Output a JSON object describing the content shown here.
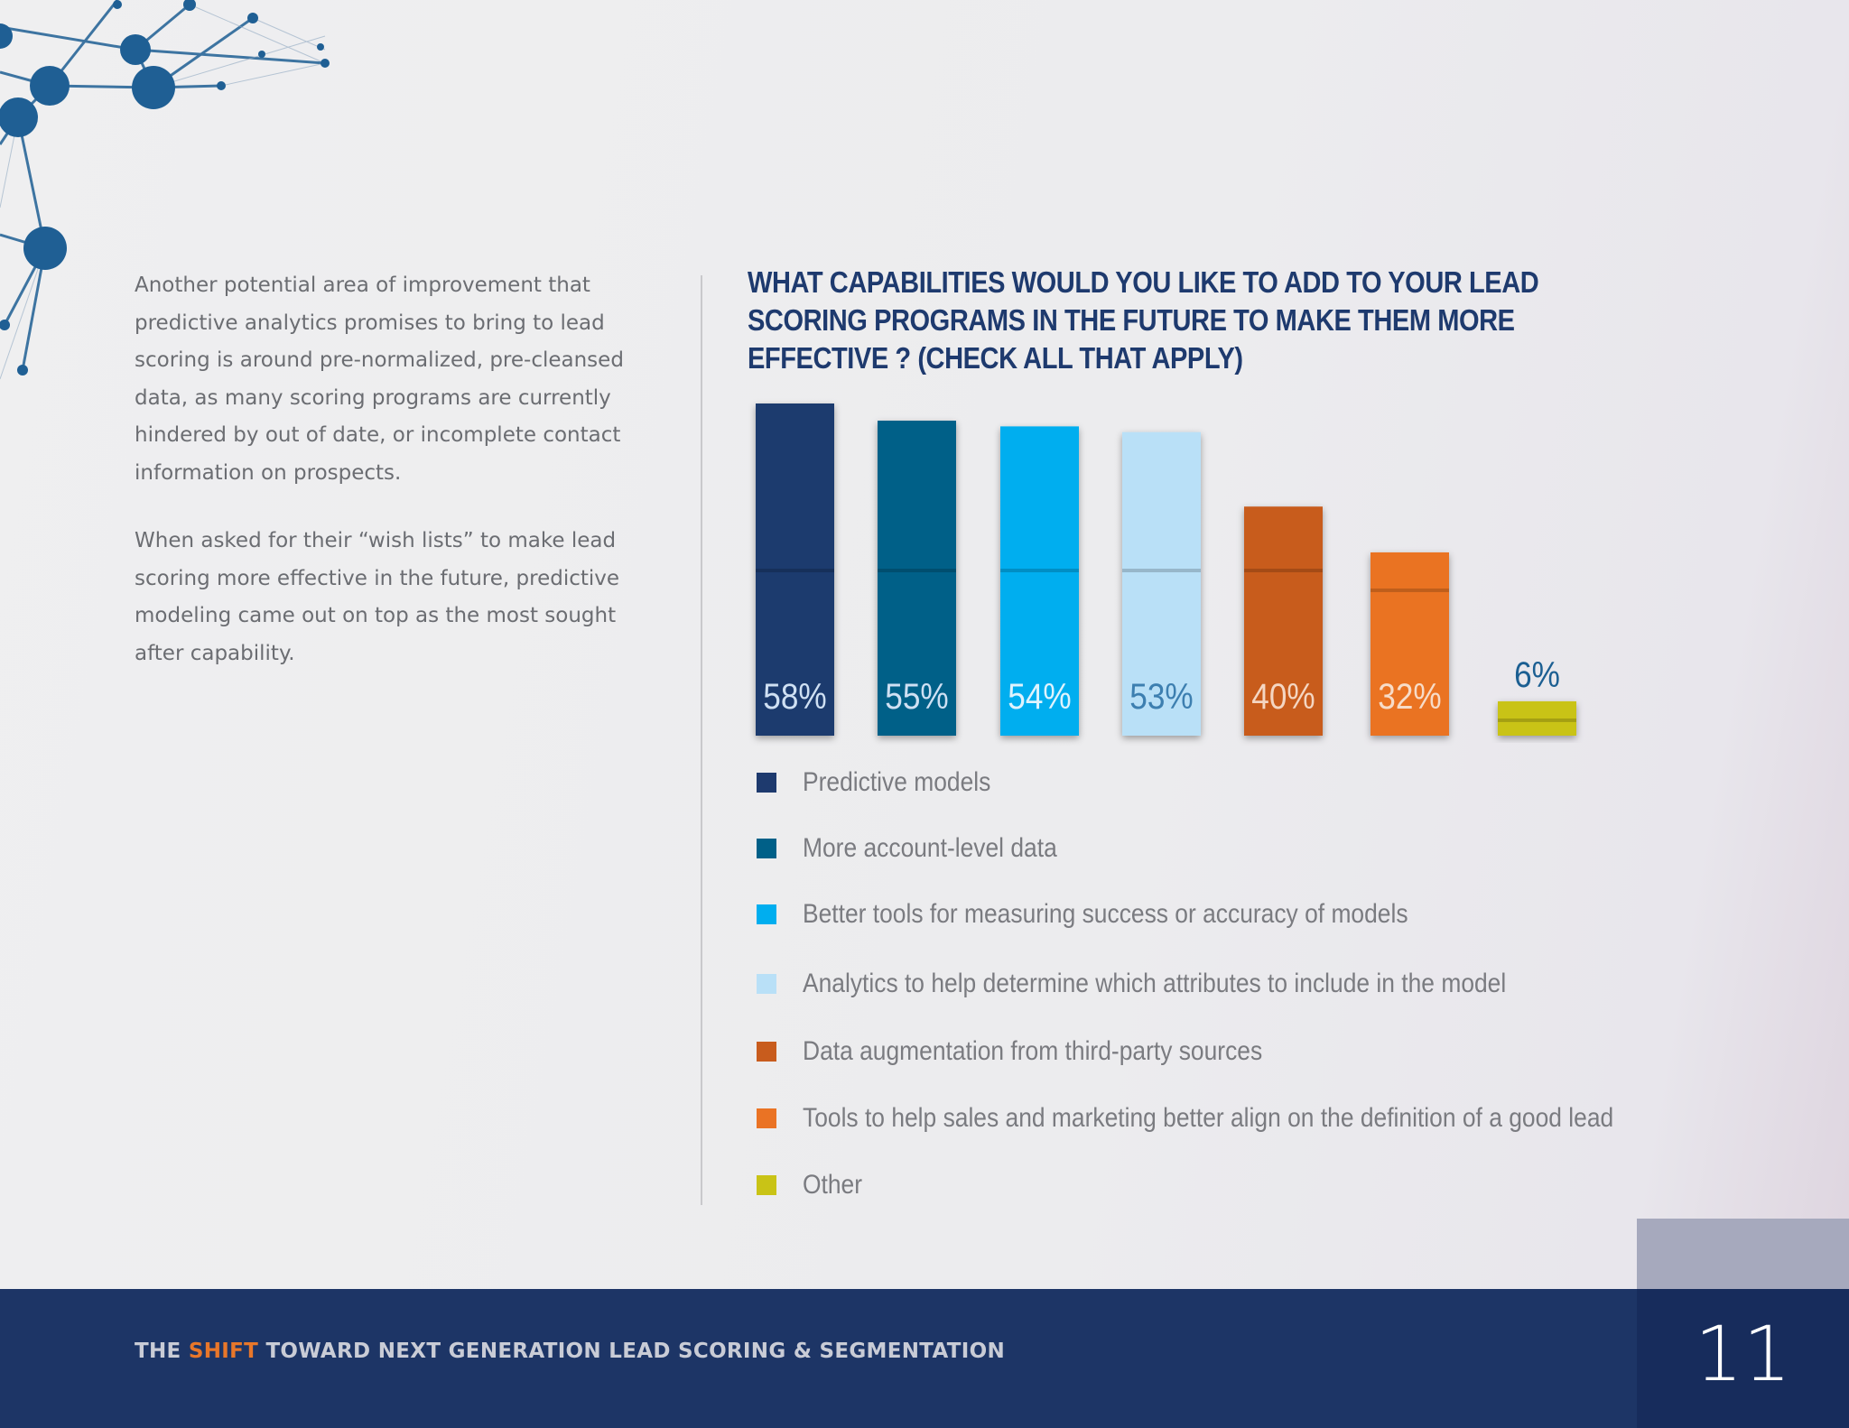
{
  "body_text": {
    "paragraph_1": "Another potential area of improvement that predictive analytics promises to bring to lead scoring is around pre-normalized, pre-cleansed data, as many scoring programs are currently hindered by out of date, or incomplete contact information on prospects.",
    "paragraph_2": "When asked for their “wish lists” to make lead scoring more effective in the future, predictive modeling came out on top as the most sought after capability."
  },
  "footer": {
    "title_prefix": "THE ",
    "title_accent": "SHIFT",
    "title_suffix": " TOWARD NEXT GENERATION LEAD SCORING & SEGMENTATION",
    "page_number": "11"
  },
  "colors": {
    "accent": "#e8772a",
    "navy": "#1d3566"
  },
  "chart_data": {
    "type": "bar",
    "title": "WHAT CAPABILITIES WOULD YOU LIKE TO ADD TO YOUR LEAD SCORING PROGRAMS IN THE FUTURE TO MAKE THEM MORE EFFECTIVE ? (CHECK ALL THAT APPLY)",
    "categories": [
      "Predictive models",
      "More account-level data",
      "Better tools for measuring success or accuracy of models",
      "Analytics to help determine which attributes to include in the model",
      "Data augmentation from third-party sources",
      "Tools to help sales and marketing better align on the definition of a good lead",
      "Other"
    ],
    "values": [
      58,
      55,
      54,
      53,
      40,
      32,
      6
    ],
    "data_labels": [
      "58%",
      "55%",
      "54%",
      "53%",
      "40%",
      "32%",
      "6%"
    ],
    "colors": [
      "#1e3a6e",
      "#006088",
      "#00aeef",
      "#b9e0f7",
      "#c85c1d",
      "#ea7324",
      "#c9c316"
    ],
    "label_colors": [
      "#cfe0f3",
      "#cfe0f3",
      "#dff3fd",
      "#3d7fb0",
      "#f4d6c2",
      "#f7dcc8",
      "#1c5f92"
    ],
    "ylim": [
      0,
      58
    ],
    "grid": false,
    "legend": "bottom"
  }
}
